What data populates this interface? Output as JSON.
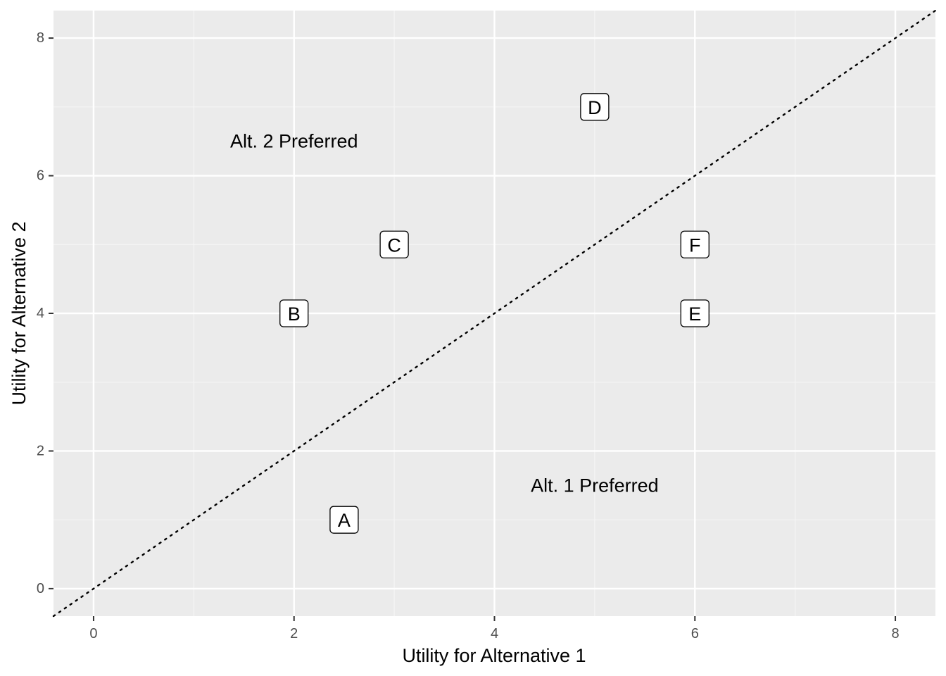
{
  "chart_data": {
    "type": "scatter",
    "title": "",
    "xlabel": "Utility for Alternative 1",
    "ylabel": "Utility for Alternative 2",
    "xlim": [
      -0.4,
      8.4
    ],
    "ylim": [
      -0.4,
      8.4
    ],
    "x_ticks": [
      0,
      2,
      4,
      6,
      8
    ],
    "y_ticks": [
      0,
      2,
      4,
      6,
      8
    ],
    "x_tick_labels": [
      "0",
      "2",
      "4",
      "6",
      "8"
    ],
    "y_tick_labels": [
      "0",
      "2",
      "4",
      "6",
      "8"
    ],
    "x_minor": [
      1,
      3,
      5,
      7
    ],
    "y_minor": [
      1,
      3,
      5,
      7
    ],
    "grid": true,
    "reference_line": {
      "slope": 1,
      "intercept": 0,
      "style": "dotted"
    },
    "points": [
      {
        "label": "A",
        "x": 2.5,
        "y": 1
      },
      {
        "label": "B",
        "x": 2,
        "y": 4
      },
      {
        "label": "C",
        "x": 3,
        "y": 5
      },
      {
        "label": "D",
        "x": 5,
        "y": 7
      },
      {
        "label": "E",
        "x": 6,
        "y": 4
      },
      {
        "label": "F",
        "x": 6,
        "y": 5
      }
    ],
    "annotations": [
      {
        "text": "Alt. 2 Preferred",
        "x": 2,
        "y": 6.5
      },
      {
        "text": "Alt. 1 Preferred",
        "x": 5,
        "y": 1.5
      }
    ],
    "colors": {
      "panel_bg": "#ebebeb",
      "grid_major": "#ffffff",
      "grid_minor": "#f5f5f5",
      "label_fill": "#ffffff",
      "text": "#000000",
      "tick_text": "#4d4d4d",
      "tick_mark": "#333333"
    }
  }
}
